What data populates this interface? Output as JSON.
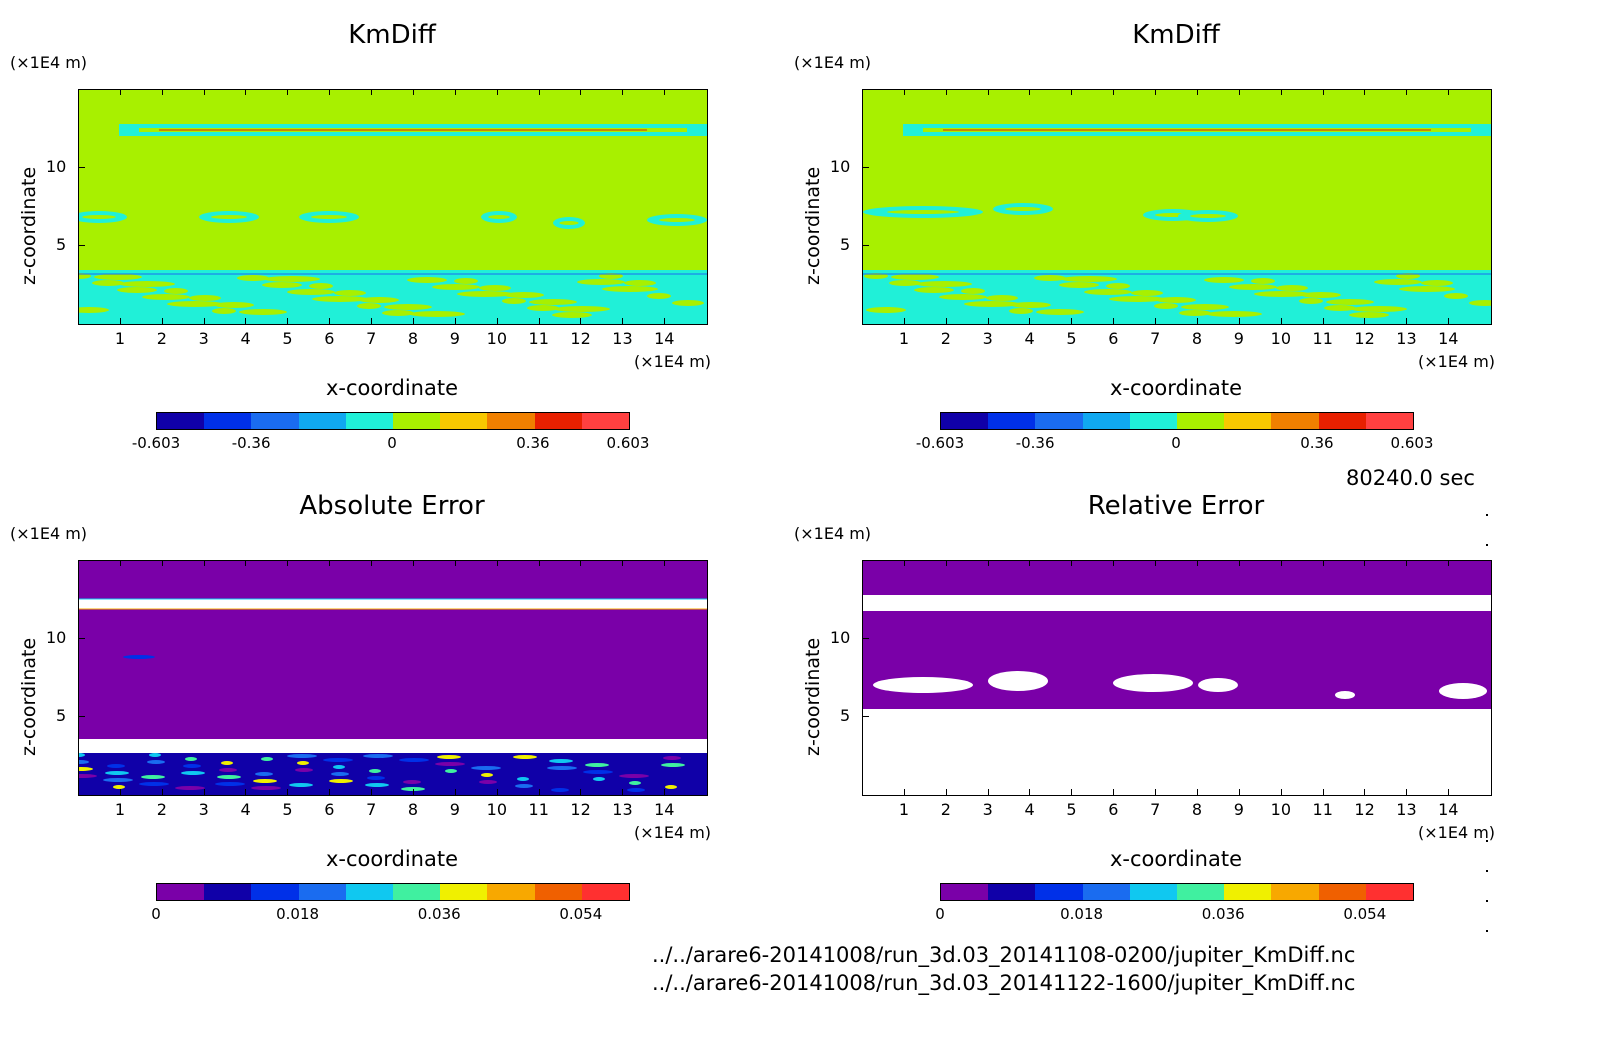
{
  "chart_data": [
    {
      "type": "heatmap",
      "title": "KmDiff",
      "xlabel": "x-coordinate",
      "ylabel": "z-coordinate",
      "x_unit": "(×1E4 m)",
      "y_unit": "(×1E4 m)",
      "xlim": [
        0,
        15
      ],
      "ylim": [
        0,
        15
      ],
      "x_ticks": [
        "1",
        "2",
        "3",
        "4",
        "5",
        "6",
        "7",
        "8",
        "9",
        "10",
        "11",
        "12",
        "13",
        "14"
      ],
      "y_ticks": [
        "5",
        "10"
      ],
      "colorbar": {
        "colors": [
          "#1000a8",
          "#0030e8",
          "#1a6cf0",
          "#10a8f0",
          "#20f0d8",
          "#a8f000",
          "#f8c800",
          "#f08000",
          "#e82000",
          "#ff4040"
        ],
        "tick_labels": [
          "-0.603",
          "-0.36",
          "0",
          "0.36",
          "0.603"
        ],
        "tick_values": [
          -0.603,
          -0.36,
          0,
          0.36,
          0.603
        ],
        "range": [
          -0.603,
          0.603
        ]
      }
    },
    {
      "type": "heatmap",
      "title": "KmDiff",
      "xlabel": "x-coordinate",
      "ylabel": "z-coordinate",
      "x_unit": "(×1E4 m)",
      "y_unit": "(×1E4 m)",
      "xlim": [
        0,
        15
      ],
      "ylim": [
        0,
        15
      ],
      "x_ticks": [
        "1",
        "2",
        "3",
        "4",
        "5",
        "6",
        "7",
        "8",
        "9",
        "10",
        "11",
        "12",
        "13",
        "14"
      ],
      "y_ticks": [
        "5",
        "10"
      ],
      "colorbar": {
        "colors": [
          "#1000a8",
          "#0030e8",
          "#1a6cf0",
          "#10a8f0",
          "#20f0d8",
          "#a8f000",
          "#f8c800",
          "#f08000",
          "#e82000",
          "#ff4040"
        ],
        "tick_labels": [
          "-0.603",
          "-0.36",
          "0",
          "0.36",
          "0.603"
        ],
        "tick_values": [
          -0.603,
          -0.36,
          0,
          0.36,
          0.603
        ],
        "range": [
          -0.603,
          0.603
        ]
      }
    },
    {
      "type": "heatmap",
      "title": "Absolute Error",
      "xlabel": "x-coordinate",
      "ylabel": "z-coordinate",
      "x_unit": "(×1E4 m)",
      "y_unit": "(×1E4 m)",
      "xlim": [
        0,
        15
      ],
      "ylim": [
        0,
        15
      ],
      "x_ticks": [
        "1",
        "2",
        "3",
        "4",
        "5",
        "6",
        "7",
        "8",
        "9",
        "10",
        "11",
        "12",
        "13",
        "14"
      ],
      "y_ticks": [
        "5",
        "10"
      ],
      "colorbar": {
        "colors": [
          "#7a00a8",
          "#1000a8",
          "#0030e8",
          "#1a6cf0",
          "#10c8f0",
          "#40f0a0",
          "#f0f000",
          "#f8a800",
          "#f06000",
          "#ff3030"
        ],
        "tick_labels": [
          "0",
          "0.018",
          "0.036",
          "0.054"
        ],
        "tick_values": [
          0,
          0.018,
          0.036,
          0.054
        ],
        "range": [
          0,
          0.06
        ]
      }
    },
    {
      "type": "heatmap",
      "title": "Relative Error",
      "xlabel": "x-coordinate",
      "ylabel": "z-coordinate",
      "x_unit": "(×1E4 m)",
      "y_unit": "(×1E4 m)",
      "xlim": [
        0,
        15
      ],
      "ylim": [
        0,
        15
      ],
      "x_ticks": [
        "1",
        "2",
        "3",
        "4",
        "5",
        "6",
        "7",
        "8",
        "9",
        "10",
        "11",
        "12",
        "13",
        "14"
      ],
      "y_ticks": [
        "5",
        "10"
      ],
      "colorbar": {
        "colors": [
          "#7a00a8",
          "#1000a8",
          "#0030e8",
          "#1a6cf0",
          "#10c8f0",
          "#40f0a0",
          "#f0f000",
          "#f8a800",
          "#f06000",
          "#ff3030"
        ],
        "tick_labels": [
          "0",
          "0.018",
          "0.036",
          "0.054"
        ],
        "tick_values": [
          0,
          0.018,
          0.036,
          0.054
        ],
        "range": [
          0,
          0.06
        ]
      }
    }
  ],
  "time_label": "80240.0 sec",
  "files": [
    "../../arare6-20141008/run_3d.03_20141108-0200/jupiter_KmDiff.nc",
    "../../arare6-20141008/run_3d.03_20141122-1600/jupiter_KmDiff.nc"
  ],
  "colors": {
    "background_field": "#a8f000",
    "stripe": "#20f0d8",
    "error_field": "#7a00a8",
    "mask": "#ffffff"
  }
}
